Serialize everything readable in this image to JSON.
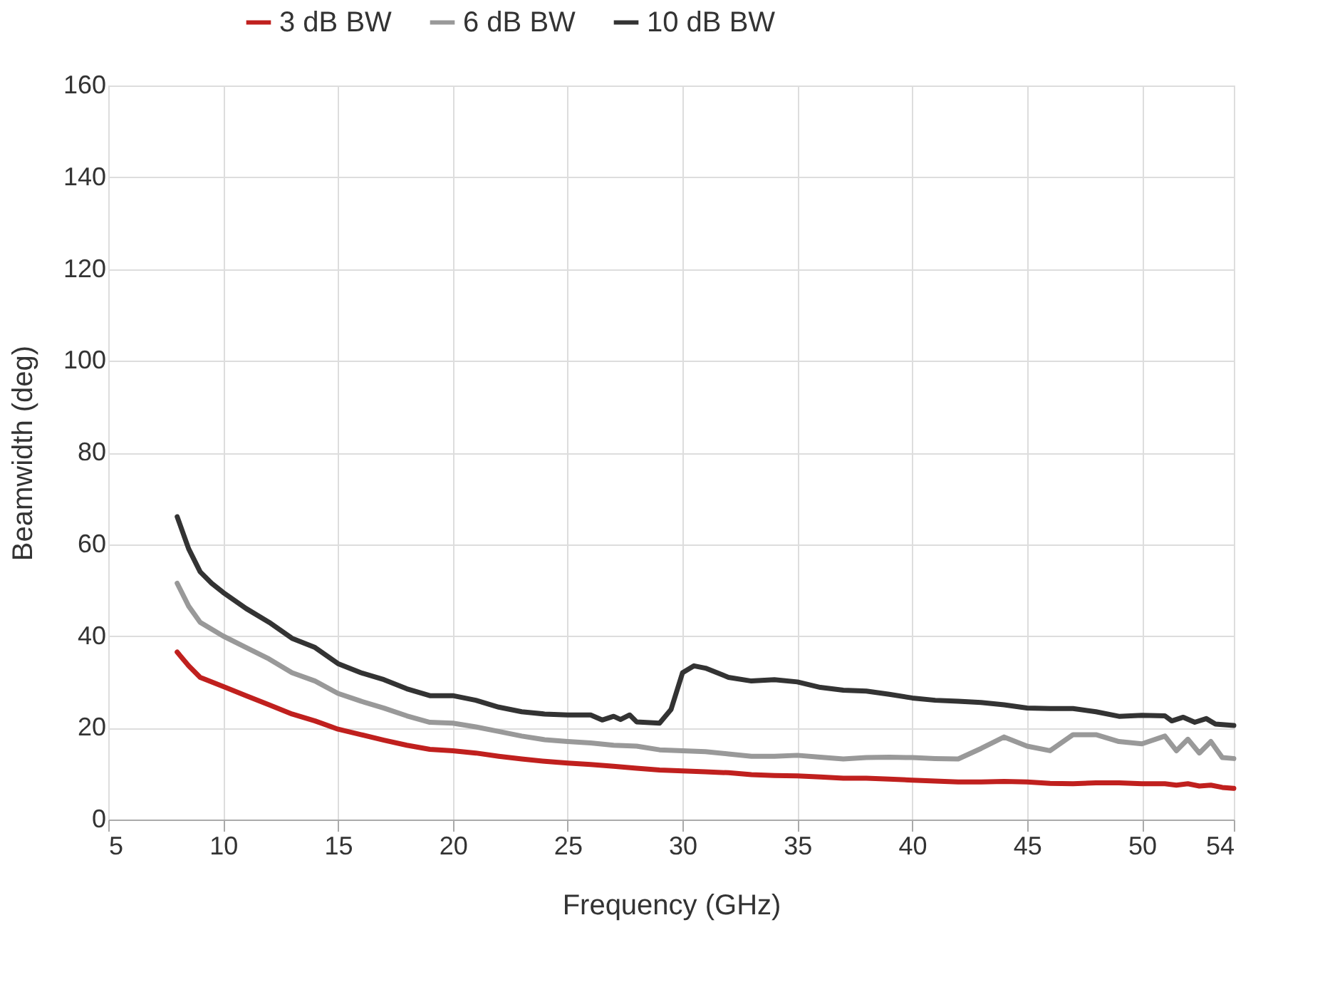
{
  "chart_data": {
    "type": "line",
    "xlabel": "Frequency (GHz)",
    "ylabel": "Beamwidth (deg)",
    "xlim": [
      5,
      54
    ],
    "xticks": [
      5,
      10,
      15,
      20,
      25,
      30,
      35,
      40,
      45,
      50,
      54
    ],
    "ylim": [
      0,
      160
    ],
    "yticks": [
      0,
      20,
      40,
      60,
      80,
      100,
      120,
      140,
      160
    ],
    "grid": true,
    "legend": "top",
    "line_style": "solid",
    "marker": "none",
    "x": [
      8,
      8.5,
      9,
      10,
      11,
      12,
      13,
      14,
      15,
      16,
      17,
      18,
      19,
      20,
      21,
      22,
      23,
      24,
      25,
      26,
      27,
      28,
      29,
      30,
      31,
      32,
      33,
      34,
      35,
      36,
      37,
      38,
      39,
      40,
      41,
      42,
      43,
      44,
      45,
      46,
      47,
      48,
      49,
      50,
      51,
      51.5,
      52,
      52.5,
      53,
      53.5,
      54
    ],
    "series": [
      {
        "name": "3 dB BW",
        "color": "#c0201e",
        "values": [
          36.5,
          33.5,
          31,
          29,
          27,
          25,
          23,
          21.5,
          19.7,
          18.5,
          17.3,
          16.2,
          15.3,
          15,
          14.5,
          13.8,
          13.2,
          12.7,
          12.3,
          12,
          11.6,
          11.2,
          10.8,
          10.6,
          10.4,
          10.2,
          9.8,
          9.6,
          9.5,
          9.3,
          9,
          9,
          8.8,
          8.6,
          8.4,
          8.2,
          8.2,
          8.3,
          8.2,
          7.9,
          7.8,
          8,
          8,
          7.8,
          7.8,
          7.5,
          7.8,
          7.3,
          7.5,
          7,
          6.8
        ]
      },
      {
        "name": "6 dB BW",
        "color": "#999999",
        "values": [
          51.5,
          46.5,
          43,
          40,
          37.5,
          35,
          32,
          30.2,
          27.5,
          25.8,
          24.3,
          22.6,
          21.2,
          21,
          20.2,
          19.2,
          18.2,
          17.4,
          17,
          16.7,
          16.2,
          16,
          15.2,
          15,
          14.8,
          14.3,
          13.8,
          13.8,
          14,
          13.6,
          13.2,
          13.5,
          13.6,
          13.5,
          13.3,
          13.2,
          15.5,
          18,
          16,
          15,
          18.5,
          18.5,
          17,
          16.5,
          18.2,
          15,
          17.5,
          14.5,
          17,
          13.5,
          13.3
        ]
      },
      {
        "name": "10 dB BW",
        "color": "#333333",
        "x": [
          8,
          8.5,
          9,
          9.5,
          10,
          11,
          12,
          13,
          14,
          15,
          16,
          17,
          18,
          19,
          20,
          21,
          22,
          23,
          24,
          25,
          26,
          26.5,
          27,
          27.3,
          27.7,
          28,
          29,
          29.5,
          30,
          30.5,
          31,
          32,
          33,
          34,
          35,
          36,
          37,
          38,
          39,
          40,
          41,
          42,
          43,
          44,
          45,
          46,
          47,
          48,
          49,
          50,
          51,
          51.3,
          51.8,
          52.3,
          52.8,
          53.2,
          54
        ],
        "values": [
          66,
          59,
          54,
          51.5,
          49.5,
          46,
          43,
          39.5,
          37.5,
          34,
          32,
          30.5,
          28.5,
          27,
          27,
          26,
          24.5,
          23.5,
          23,
          22.8,
          22.8,
          21.7,
          22.5,
          21.8,
          22.8,
          21.3,
          21,
          24,
          32,
          33.5,
          33,
          31,
          30.2,
          30.5,
          30,
          28.8,
          28.2,
          28,
          27.3,
          26.5,
          26,
          25.8,
          25.5,
          25,
          24.3,
          24.2,
          24.2,
          23.5,
          22.5,
          22.7,
          22.6,
          21.5,
          22.3,
          21.2,
          22,
          20.8,
          20.5
        ]
      }
    ]
  }
}
